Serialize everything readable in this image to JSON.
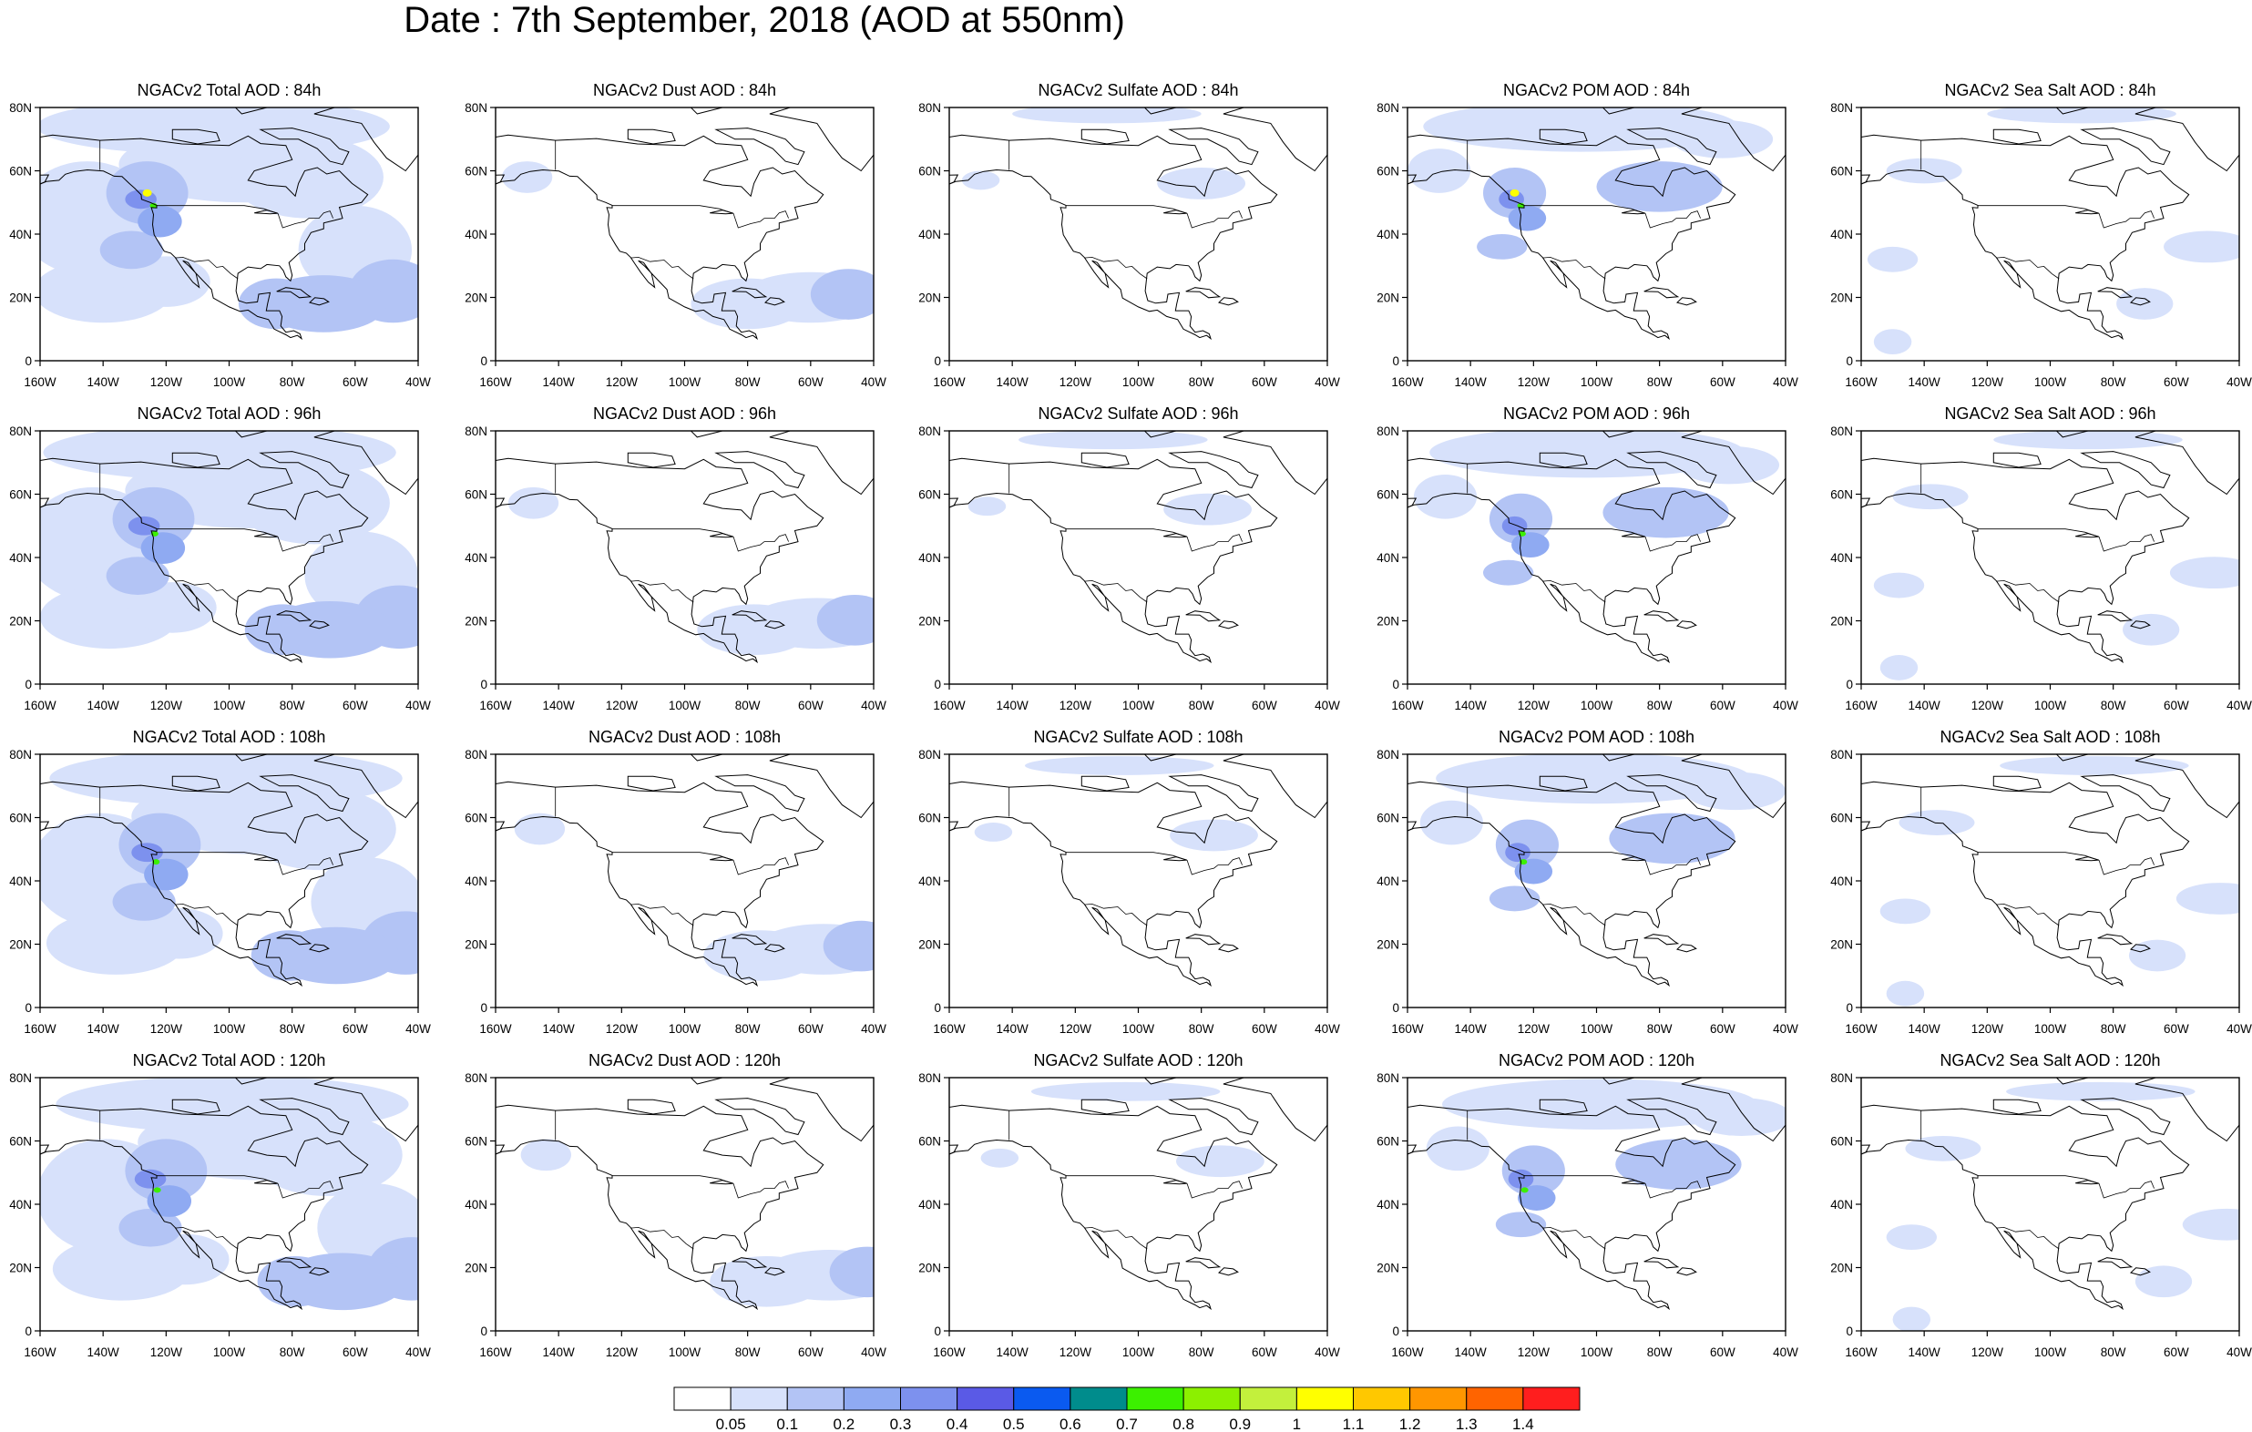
{
  "title": "Date : 7th September, 2018 (AOD at 550nm)",
  "panels": [
    [
      "NGACv2 Total AOD : 84h",
      "NGACv2 Dust AOD : 84h",
      "NGACv2 Sulfate AOD : 84h",
      "NGACv2 POM AOD : 84h",
      "NGACv2 Sea Salt AOD : 84h"
    ],
    [
      "NGACv2 Total AOD : 96h",
      "NGACv2 Dust AOD : 96h",
      "NGACv2 Sulfate AOD : 96h",
      "NGACv2 POM AOD : 96h",
      "NGACv2 Sea Salt AOD : 96h"
    ],
    [
      "NGACv2 Total AOD : 108h",
      "NGACv2 Dust AOD : 108h",
      "NGACv2 Sulfate AOD : 108h",
      "NGACv2 POM AOD : 108h",
      "NGACv2 Sea Salt  AOD : 108h"
    ],
    [
      "NGACv2 Total AOD : 120h",
      "NGACv2 Dust AOD : 120h",
      "NGACv2 Sulfate AOD : 120h",
      "NGACv2 POM AOD : 120h",
      "NGACv2 Sea Salt  AOD : 120h"
    ]
  ],
  "axes": {
    "lat_ticks": [
      "80N",
      "60N",
      "40N",
      "20N",
      "0"
    ],
    "lon_ticks": [
      "160W",
      "140W",
      "120W",
      "100W",
      "80W",
      "60W",
      "40W"
    ]
  },
  "colorbar": {
    "labels": [
      "0.05",
      "0.1",
      "0.2",
      "0.3",
      "0.4",
      "0.5",
      "0.6",
      "0.7",
      "0.8",
      "0.9",
      "1",
      "1.1",
      "1.2",
      "1.3",
      "1.4"
    ],
    "colors": [
      "#ffffff",
      "#d7e1fb",
      "#b3c4f5",
      "#8faaf2",
      "#7d91ee",
      "#5a5ae6",
      "#0a5af0",
      "#008c8c",
      "#3cf000",
      "#8cf000",
      "#c3f03c",
      "#ffff00",
      "#ffc800",
      "#ff9600",
      "#ff6400",
      "#ff1e1e"
    ]
  }
}
